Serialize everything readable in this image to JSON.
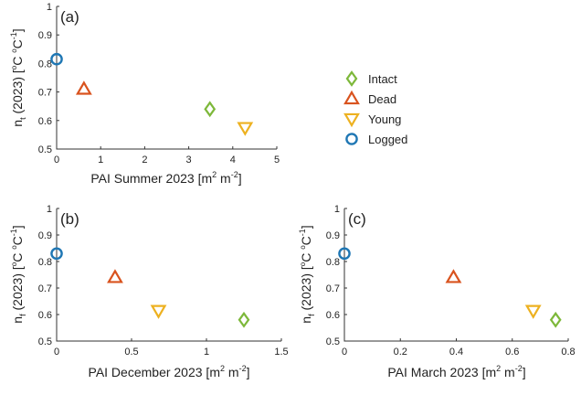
{
  "colors": {
    "Intact": "#7db83a",
    "Dead": "#d9531e",
    "Young": "#edb120",
    "Logged": "#1f77b4"
  },
  "legend": [
    {
      "name": "Intact",
      "marker": "diamond"
    },
    {
      "name": "Dead",
      "marker": "triangle-up"
    },
    {
      "name": "Young",
      "marker": "triangle-down"
    },
    {
      "name": "Logged",
      "marker": "circle"
    }
  ],
  "chart_data": [
    {
      "type": "scatter",
      "panel_label": "(a)",
      "xlabel": {
        "base": "PAI Summer 2023 [m",
        "sup1": "2",
        "mid": " m",
        "sup2": "-2",
        "end": "]"
      },
      "ylabel": {
        "pre": "n",
        "sub": "t",
        "post": " (2023) [",
        "deg1": "o",
        "c1": "C ",
        "deg2": "o",
        "c2": "C",
        "sup": "-1",
        "end": "]"
      },
      "xlim": [
        0,
        5
      ],
      "ylim": [
        0.5,
        1
      ],
      "xticks": [
        "0",
        "1",
        "2",
        "3",
        "4",
        "5"
      ],
      "xtick_values": [
        0,
        1,
        2,
        3,
        4,
        5
      ],
      "yticks": [
        "0.5",
        "0.6",
        "0.7",
        "0.8",
        "0.9",
        "1"
      ],
      "ytick_values": [
        0.5,
        0.6,
        0.7,
        0.8,
        0.9,
        1.0
      ],
      "points": [
        {
          "series": "Intact",
          "x": 3.48,
          "y": 0.64
        },
        {
          "series": "Dead",
          "x": 0.62,
          "y": 0.71
        },
        {
          "series": "Young",
          "x": 4.28,
          "y": 0.575
        },
        {
          "series": "Logged",
          "x": 0.0,
          "y": 0.815
        }
      ]
    },
    {
      "type": "scatter",
      "panel_label": "(b)",
      "xlabel": {
        "base": "PAI December 2023 [m",
        "sup1": "2",
        "mid": " m",
        "sup2": "-2",
        "end": "]"
      },
      "ylabel": {
        "pre": "n",
        "sub": "f",
        "post": " (2023) [",
        "deg1": "o",
        "c1": "C ",
        "deg2": "o",
        "c2": "C",
        "sup": "-1",
        "end": "]"
      },
      "xlim": [
        0,
        1.5
      ],
      "ylim": [
        0.5,
        1
      ],
      "xticks": [
        "0",
        "0.5",
        "1",
        "1.5"
      ],
      "xtick_values": [
        0,
        0.5,
        1.0,
        1.5
      ],
      "yticks": [
        "0.5",
        "0.6",
        "0.7",
        "0.8",
        "0.9",
        "1"
      ],
      "ytick_values": [
        0.5,
        0.6,
        0.7,
        0.8,
        0.9,
        1.0
      ],
      "points": [
        {
          "series": "Intact",
          "x": 1.25,
          "y": 0.58
        },
        {
          "series": "Dead",
          "x": 0.39,
          "y": 0.74
        },
        {
          "series": "Young",
          "x": 0.68,
          "y": 0.615
        },
        {
          "series": "Logged",
          "x": 0.0,
          "y": 0.83
        }
      ]
    },
    {
      "type": "scatter",
      "panel_label": "(c)",
      "xlabel": {
        "base": "PAI March 2023 [m",
        "sup1": "2",
        "mid": " m",
        "sup2": "-2",
        "end": "]"
      },
      "ylabel": {
        "pre": "n",
        "sub": "f",
        "post": " (2023) [",
        "deg1": "o",
        "c1": "C ",
        "deg2": "o",
        "c2": "C",
        "sup": "-1",
        "end": "]"
      },
      "xlim": [
        0,
        0.8
      ],
      "ylim": [
        0.5,
        1
      ],
      "xticks": [
        "0",
        "0.2",
        "0.4",
        "0.6",
        "0.8"
      ],
      "xtick_values": [
        0,
        0.2,
        0.4,
        0.6,
        0.8
      ],
      "yticks": [
        "0.5",
        "0.6",
        "0.7",
        "0.8",
        "0.9",
        "1"
      ],
      "ytick_values": [
        0.5,
        0.6,
        0.7,
        0.8,
        0.9,
        1.0
      ],
      "points": [
        {
          "series": "Intact",
          "x": 0.755,
          "y": 0.58
        },
        {
          "series": "Dead",
          "x": 0.39,
          "y": 0.74
        },
        {
          "series": "Young",
          "x": 0.675,
          "y": 0.615
        },
        {
          "series": "Logged",
          "x": 0.0,
          "y": 0.83
        }
      ]
    }
  ]
}
